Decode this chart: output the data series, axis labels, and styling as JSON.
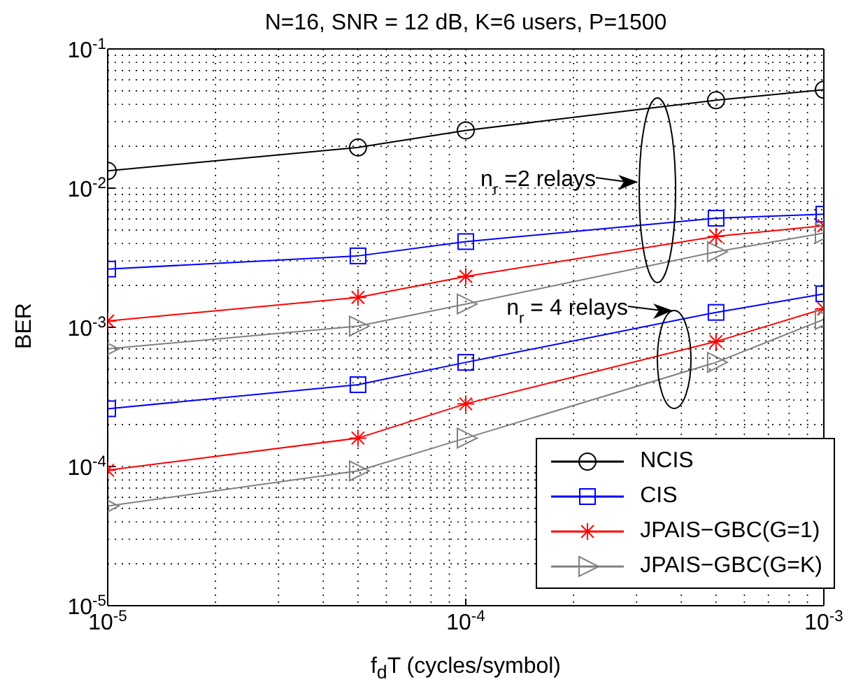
{
  "chart_data": {
    "type": "line",
    "title": "N=16, SNR = 12 dB, K=6 users, P=1500",
    "xlabel": "f$_{d}$T (cycles/symbol)",
    "ylabel": "BER",
    "x": [
      1e-05,
      5e-05,
      0.0001,
      0.0005,
      0.001
    ],
    "series": [
      {
        "name": "NCIS",
        "color": "#000000",
        "marker": "circle",
        "values": [
          0.0133,
          0.0196,
          0.026,
          0.0428,
          0.051
        ]
      },
      {
        "name": "CIS",
        "color": "#0000ff",
        "marker": "square",
        "values": [
          0.00262,
          0.00326,
          0.00413,
          0.00608,
          0.0065
        ]
      },
      {
        "name": "JPAIS−GBC(G=1)",
        "color": "#ff0000",
        "marker": "cross",
        "values": [
          0.00111,
          0.00164,
          0.00232,
          0.0045,
          0.00537
        ]
      },
      {
        "name": "JPAIS−GBC(G=K)",
        "color": "#808080",
        "marker": "triangle",
        "values": [
          0.0007,
          0.00102,
          0.00147,
          0.00349,
          0.00475
        ]
      },
      {
        "color": "#0000ff",
        "marker": "square",
        "values": [
          0.00026,
          0.000387,
          0.00056,
          0.00128,
          0.00174
        ]
      },
      {
        "color": "#ff0000",
        "marker": "cross",
        "values": [
          9.4e-05,
          0.00016,
          0.000282,
          0.00079,
          0.00136
        ]
      },
      {
        "color": "#808080",
        "marker": "triangle",
        "values": [
          5.2e-05,
          9.3e-05,
          0.00016,
          0.00056,
          0.00114
        ]
      }
    ],
    "xlim": [
      1e-05,
      0.001
    ],
    "ylim": [
      1e-05,
      0.1
    ],
    "xticks": [
      {
        "value": 1e-05,
        "label": "10$^{-5}$"
      },
      {
        "value": 0.0001,
        "label": "10$^{-4}$"
      },
      {
        "value": 0.001,
        "label": "10$^{-3}$"
      }
    ],
    "yticks": [
      {
        "value": 1e-05,
        "label": "10$^{-5}$"
      },
      {
        "value": 0.0001,
        "label": "10$^{-4}$"
      },
      {
        "value": 0.001,
        "label": "10$^{-3}$"
      },
      {
        "value": 0.01,
        "label": "10$^{-2}$"
      },
      {
        "value": 0.1,
        "label": "10$^{-1}$"
      }
    ],
    "log": "xy",
    "grid": true,
    "legend": "bottom right",
    "line_style": "solid",
    "annotations": [
      "n$_{r}$ =2 relays",
      "n$_{r}$ = 4 relays"
    ]
  }
}
